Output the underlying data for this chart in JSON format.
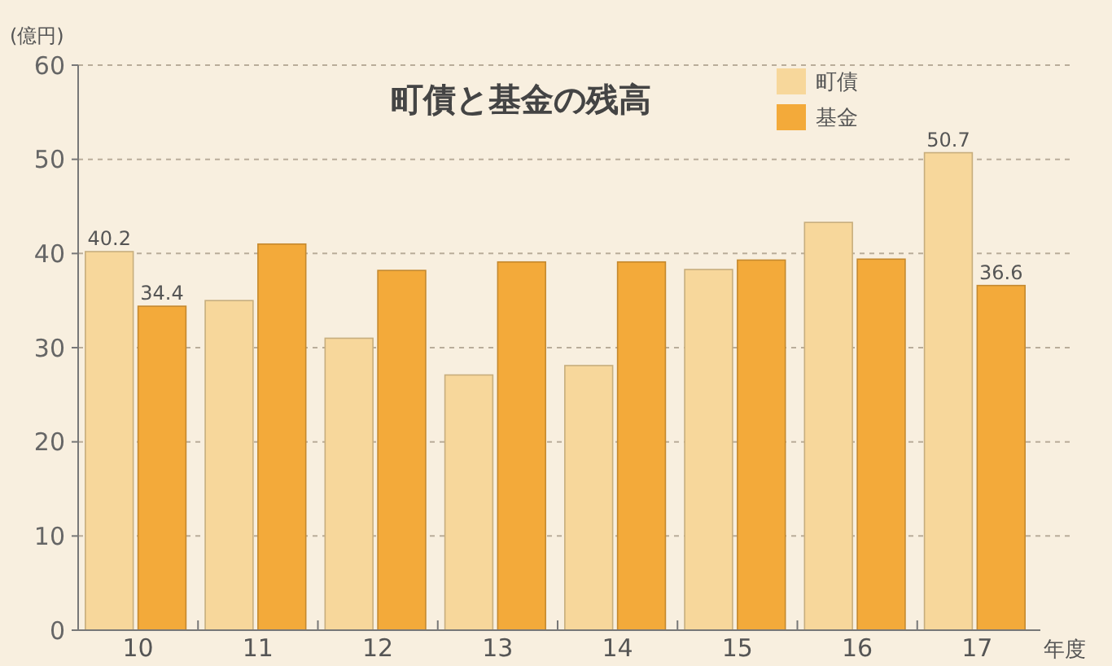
{
  "chart_data": {
    "type": "bar",
    "title": "町債と基金の残高",
    "ylabel": "(億円)",
    "xlabel": "年度",
    "categories": [
      "10",
      "11",
      "12",
      "13",
      "14",
      "15",
      "16",
      "17"
    ],
    "series": [
      {
        "name": "町債",
        "color": "#f7d79b",
        "values": [
          40.2,
          35.0,
          31.0,
          27.1,
          28.1,
          38.3,
          43.3,
          50.7
        ],
        "value_labels": [
          "40.2",
          null,
          null,
          null,
          null,
          null,
          null,
          "50.7"
        ]
      },
      {
        "name": "基金",
        "color": "#f3aa3a",
        "values": [
          34.4,
          41.0,
          38.2,
          39.1,
          39.1,
          39.3,
          39.4,
          36.6
        ],
        "value_labels": [
          "34.4",
          null,
          null,
          null,
          null,
          null,
          null,
          "36.6"
        ]
      }
    ],
    "ylim": [
      0,
      60
    ],
    "yticks": [
      0,
      10,
      20,
      30,
      40,
      50,
      60
    ],
    "grid": "y",
    "legend": "top right"
  }
}
